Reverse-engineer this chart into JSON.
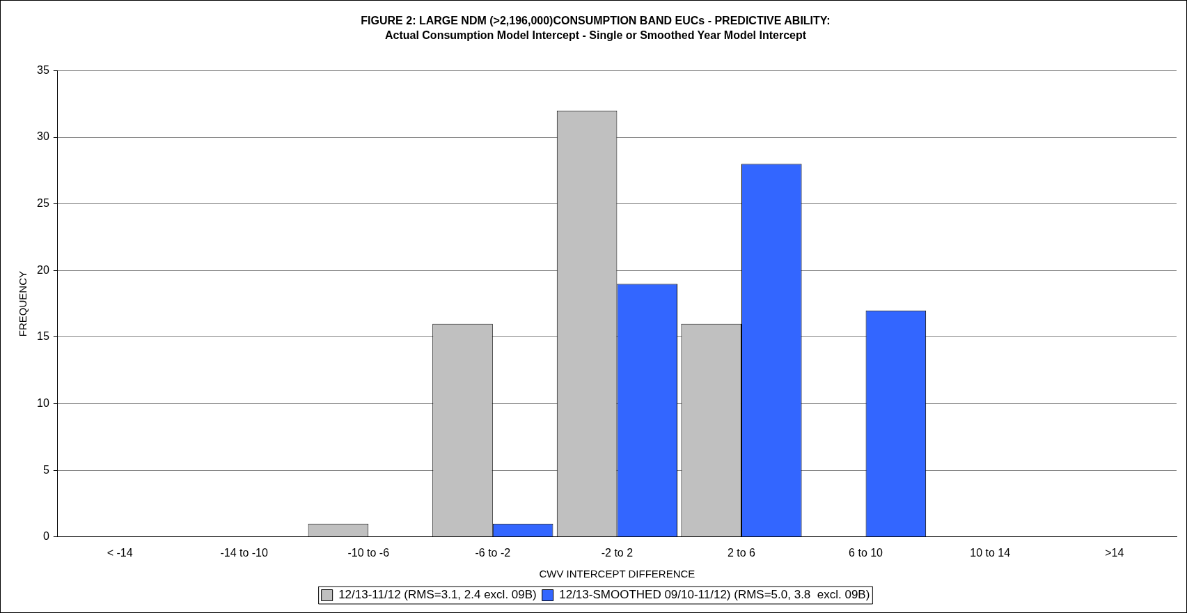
{
  "chart_data": {
    "type": "bar",
    "title": "FIGURE 2: LARGE NDM (>2,196,000)CONSUMPTION BAND EUCs - PREDICTIVE ABILITY:",
    "subtitle": "Actual Consumption Model Intercept - Single or Smoothed Year Model Intercept",
    "xlabel": "CWV INTERCEPT DIFFERENCE",
    "ylabel": "FREQUENCY",
    "categories": [
      "< -14",
      "-14 to -10",
      "-10 to -6",
      "-6 to -2",
      "-2 to 2",
      "2 to 6",
      "6 to 10",
      "10 to 14",
      ">14"
    ],
    "series": [
      {
        "name": "12/13-11/12 (RMS=3.1, 2.4 excl. 09B)",
        "color": "#c0c0c0",
        "values": [
          0,
          0,
          1,
          16,
          32,
          16,
          0,
          0,
          0
        ]
      },
      {
        "name": "12/13-SMOOTHED 09/10-11/12) (RMS=5.0, 3.8  excl. 09B)",
        "color": "#3366ff",
        "values": [
          0,
          0,
          0,
          1,
          19,
          28,
          17,
          0,
          0
        ]
      }
    ],
    "ylim": [
      0,
      35
    ],
    "yticks": [
      0,
      5,
      10,
      15,
      20,
      25,
      30,
      35
    ],
    "grid": "y",
    "legend": "bottom"
  }
}
